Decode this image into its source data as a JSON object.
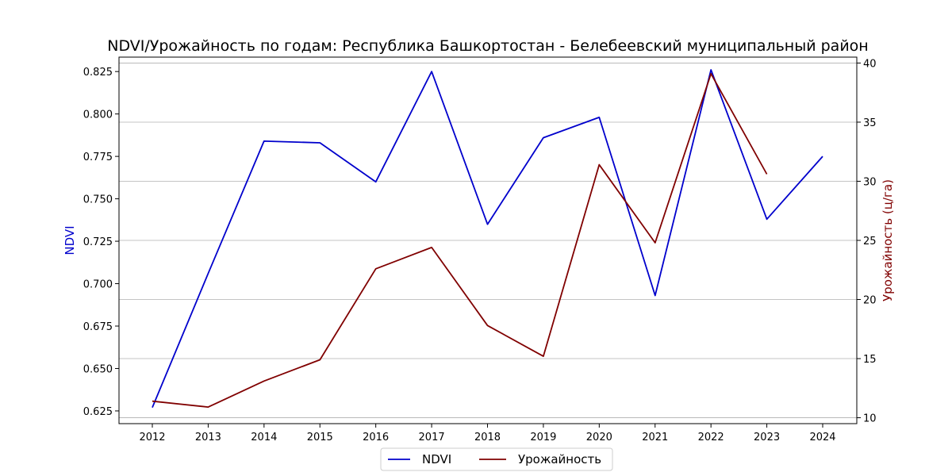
{
  "chart_data": {
    "type": "line",
    "title": "NDVI/Урожайность по годам: Республика Башкортостан - Белебеевский муниципальный район",
    "x": [
      "2012",
      "2013",
      "2014",
      "2015",
      "2016",
      "2017",
      "2018",
      "2019",
      "2020",
      "2021",
      "2022",
      "2023",
      "2024"
    ],
    "left_axis": {
      "label": "NDVI",
      "color": "#0000cc",
      "range": [
        0.6175,
        0.8335
      ],
      "ticks": [
        "0.625",
        "0.650",
        "0.675",
        "0.700",
        "0.725",
        "0.750",
        "0.775",
        "0.800",
        "0.825"
      ]
    },
    "right_axis": {
      "label": "Урожайность (ц/га)",
      "color": "#800000",
      "range": [
        9.5,
        40.5
      ],
      "ticks": [
        "10",
        "15",
        "20",
        "25",
        "30",
        "35",
        "40"
      ]
    },
    "grid": "horizontal, right axis",
    "legend_position": "bottom-center",
    "series": [
      {
        "name": "NDVI",
        "axis": "left",
        "color": "#0000cc",
        "values": [
          0.627,
          0.706,
          0.784,
          0.783,
          0.76,
          0.825,
          0.735,
          0.786,
          0.798,
          0.693,
          0.826,
          0.738,
          0.775
        ]
      },
      {
        "name": "Урожайность",
        "axis": "right",
        "color": "#800000",
        "values": [
          11.4,
          10.9,
          13.1,
          14.9,
          22.6,
          24.4,
          17.8,
          15.2,
          31.4,
          24.8,
          39.1,
          30.6,
          null
        ]
      }
    ]
  }
}
